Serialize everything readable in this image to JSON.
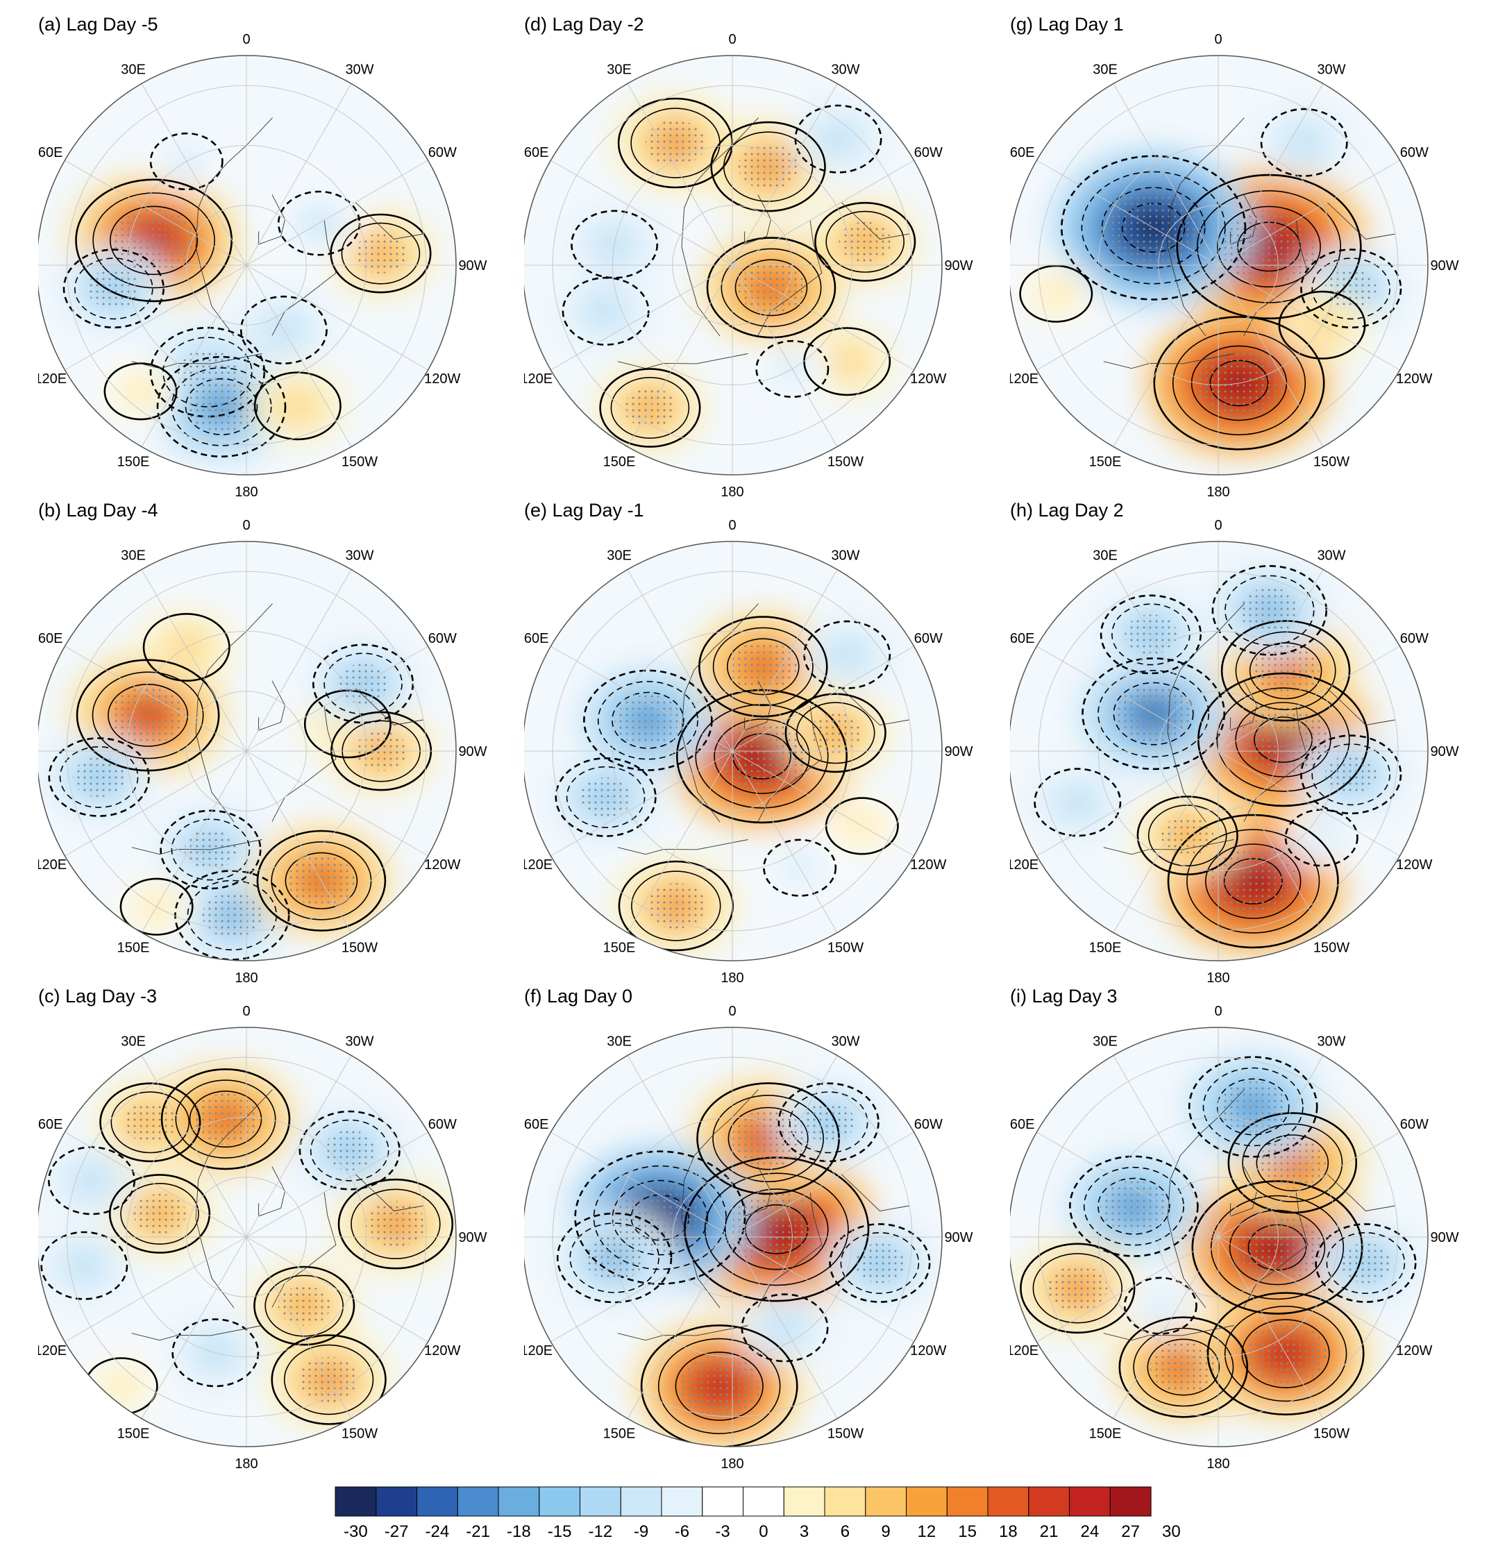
{
  "figure": {
    "type": "polar-stereographic-maps",
    "contour_style": "solid lines = positive, dashed lines = negative, stippling = significant"
  },
  "panels": [
    {
      "id": "a",
      "title": "(a) Lag Day -5",
      "lag": -5,
      "anomalies": [
        {
          "lon": 75,
          "lat": 58,
          "value": 24,
          "sign": "pos"
        },
        {
          "lon": -85,
          "lat": 45,
          "value": 12,
          "sign": "pos"
        },
        {
          "lon": -60,
          "lat": 62,
          "value": -8,
          "sign": "neg"
        },
        {
          "lon": 100,
          "lat": 45,
          "value": -12,
          "sign": "neg"
        },
        {
          "lon": 160,
          "lat": 52,
          "value": -15,
          "sign": "neg"
        },
        {
          "lon": 170,
          "lat": 42,
          "value": -18,
          "sign": "neg"
        },
        {
          "lon": -160,
          "lat": 40,
          "value": 9,
          "sign": "pos"
        },
        {
          "lon": 140,
          "lat": 35,
          "value": 6,
          "sign": "pos"
        },
        {
          "lon": 30,
          "lat": 50,
          "value": -6,
          "sign": "neg"
        },
        {
          "lon": -150,
          "lat": 65,
          "value": -9,
          "sign": "neg"
        }
      ]
    },
    {
      "id": "b",
      "title": "(b) Lag Day -4",
      "lag": -4,
      "anomalies": [
        {
          "lon": 70,
          "lat": 55,
          "value": 21,
          "sign": "pos"
        },
        {
          "lon": 30,
          "lat": 50,
          "value": 9,
          "sign": "pos"
        },
        {
          "lon": -75,
          "lat": 55,
          "value": 9,
          "sign": "pos"
        },
        {
          "lon": -90,
          "lat": 45,
          "value": 12,
          "sign": "pos"
        },
        {
          "lon": -60,
          "lat": 45,
          "value": -12,
          "sign": "neg"
        },
        {
          "lon": 100,
          "lat": 40,
          "value": -12,
          "sign": "neg"
        },
        {
          "lon": 160,
          "lat": 55,
          "value": -12,
          "sign": "neg"
        },
        {
          "lon": 175,
          "lat": 35,
          "value": -15,
          "sign": "neg"
        },
        {
          "lon": -150,
          "lat": 40,
          "value": 18,
          "sign": "pos"
        },
        {
          "lon": 150,
          "lat": 30,
          "value": 6,
          "sign": "pos"
        }
      ]
    },
    {
      "id": "c",
      "title": "(c) Lag Day -3",
      "lag": -3,
      "anomalies": [
        {
          "lon": 40,
          "lat": 40,
          "value": 12,
          "sign": "pos"
        },
        {
          "lon": 10,
          "lat": 50,
          "value": 18,
          "sign": "pos"
        },
        {
          "lon": 75,
          "lat": 60,
          "value": 12,
          "sign": "pos"
        },
        {
          "lon": -85,
          "lat": 40,
          "value": 15,
          "sign": "pos"
        },
        {
          "lon": -140,
          "lat": 60,
          "value": 12,
          "sign": "pos"
        },
        {
          "lon": -150,
          "lat": 35,
          "value": 15,
          "sign": "pos"
        },
        {
          "lon": -50,
          "lat": 45,
          "value": -12,
          "sign": "neg"
        },
        {
          "lon": 70,
          "lat": 35,
          "value": -9,
          "sign": "neg"
        },
        {
          "lon": 100,
          "lat": 35,
          "value": -9,
          "sign": "neg"
        },
        {
          "lon": 165,
          "lat": 50,
          "value": -9,
          "sign": "neg"
        },
        {
          "lon": 140,
          "lat": 25,
          "value": 6,
          "sign": "pos"
        }
      ]
    },
    {
      "id": "d",
      "title": "(d) Lag Day -2",
      "lag": -2,
      "anomalies": [
        {
          "lon": 25,
          "lat": 45,
          "value": 15,
          "sign": "pos"
        },
        {
          "lon": -20,
          "lat": 55,
          "value": 15,
          "sign": "pos"
        },
        {
          "lon": -120,
          "lat": 75,
          "value": 18,
          "sign": "pos"
        },
        {
          "lon": -80,
          "lat": 45,
          "value": 12,
          "sign": "pos"
        },
        {
          "lon": -40,
          "lat": 35,
          "value": -9,
          "sign": "neg"
        },
        {
          "lon": 80,
          "lat": 50,
          "value": -9,
          "sign": "neg"
        },
        {
          "lon": 110,
          "lat": 45,
          "value": -9,
          "sign": "neg"
        },
        {
          "lon": 150,
          "lat": 35,
          "value": 12,
          "sign": "pos"
        },
        {
          "lon": -130,
          "lat": 40,
          "value": 9,
          "sign": "pos"
        },
        {
          "lon": -150,
          "lat": 50,
          "value": -6,
          "sign": "neg"
        }
      ]
    },
    {
      "id": "e",
      "title": "(e) Lag Day -1",
      "lag": -1,
      "anomalies": [
        {
          "lon": -100,
          "lat": 80,
          "value": 27,
          "sign": "pos"
        },
        {
          "lon": -20,
          "lat": 60,
          "value": 18,
          "sign": "pos"
        },
        {
          "lon": -80,
          "lat": 55,
          "value": 12,
          "sign": "pos"
        },
        {
          "lon": 70,
          "lat": 60,
          "value": -18,
          "sign": "neg"
        },
        {
          "lon": 110,
          "lat": 45,
          "value": -12,
          "sign": "neg"
        },
        {
          "lon": -50,
          "lat": 40,
          "value": -9,
          "sign": "neg"
        },
        {
          "lon": 160,
          "lat": 35,
          "value": 15,
          "sign": "pos"
        },
        {
          "lon": -150,
          "lat": 45,
          "value": -6,
          "sign": "neg"
        },
        {
          "lon": -120,
          "lat": 40,
          "value": 6,
          "sign": "pos"
        }
      ]
    },
    {
      "id": "f",
      "title": "(f) Lag Day 0",
      "lag": 0,
      "anomalies": [
        {
          "lon": -80,
          "lat": 75,
          "value": 30,
          "sign": "pos"
        },
        {
          "lon": -20,
          "lat": 55,
          "value": 21,
          "sign": "pos"
        },
        {
          "lon": 75,
          "lat": 65,
          "value": -27,
          "sign": "neg"
        },
        {
          "lon": 100,
          "lat": 50,
          "value": -15,
          "sign": "neg"
        },
        {
          "lon": -40,
          "lat": 40,
          "value": -12,
          "sign": "neg"
        },
        {
          "lon": -100,
          "lat": 40,
          "value": -12,
          "sign": "neg"
        },
        {
          "lon": 175,
          "lat": 40,
          "value": 24,
          "sign": "pos"
        },
        {
          "lon": -150,
          "lat": 55,
          "value": -9,
          "sign": "neg"
        }
      ]
    },
    {
      "id": "g",
      "title": "(g) Lag Day 1",
      "lag": 1,
      "anomalies": [
        {
          "lon": -70,
          "lat": 72,
          "value": 30,
          "sign": "pos"
        },
        {
          "lon": 60,
          "lat": 65,
          "value": -30,
          "sign": "neg"
        },
        {
          "lon": -170,
          "lat": 50,
          "value": 27,
          "sign": "pos"
        },
        {
          "lon": -100,
          "lat": 45,
          "value": -12,
          "sign": "neg"
        },
        {
          "lon": -35,
          "lat": 40,
          "value": -9,
          "sign": "neg"
        },
        {
          "lon": 100,
          "lat": 35,
          "value": 6,
          "sign": "pos"
        },
        {
          "lon": -120,
          "lat": 50,
          "value": 9,
          "sign": "pos"
        }
      ]
    },
    {
      "id": "h",
      "title": "(h) Lag Day 2",
      "lag": 2,
      "anomalies": [
        {
          "lon": -80,
          "lat": 68,
          "value": 27,
          "sign": "pos"
        },
        {
          "lon": -40,
          "lat": 55,
          "value": 18,
          "sign": "pos"
        },
        {
          "lon": 60,
          "lat": 65,
          "value": -21,
          "sign": "neg"
        },
        {
          "lon": 30,
          "lat": 45,
          "value": -12,
          "sign": "neg"
        },
        {
          "lon": -20,
          "lat": 40,
          "value": -15,
          "sign": "neg"
        },
        {
          "lon": -100,
          "lat": 45,
          "value": -12,
          "sign": "neg"
        },
        {
          "lon": -165,
          "lat": 45,
          "value": 27,
          "sign": "pos"
        },
        {
          "lon": 110,
          "lat": 40,
          "value": -9,
          "sign": "neg"
        },
        {
          "lon": 160,
          "lat": 60,
          "value": 12,
          "sign": "pos"
        },
        {
          "lon": -130,
          "lat": 45,
          "value": -6,
          "sign": "neg"
        }
      ]
    },
    {
      "id": "i",
      "title": "(i) Lag Day 3",
      "lag": 3,
      "anomalies": [
        {
          "lon": -100,
          "lat": 70,
          "value": 27,
          "sign": "pos"
        },
        {
          "lon": -45,
          "lat": 55,
          "value": 18,
          "sign": "pos"
        },
        {
          "lon": -15,
          "lat": 45,
          "value": -18,
          "sign": "neg"
        },
        {
          "lon": 70,
          "lat": 60,
          "value": -18,
          "sign": "neg"
        },
        {
          "lon": -100,
          "lat": 40,
          "value": -12,
          "sign": "neg"
        },
        {
          "lon": 110,
          "lat": 40,
          "value": 15,
          "sign": "pos"
        },
        {
          "lon": 165,
          "lat": 45,
          "value": 18,
          "sign": "pos"
        },
        {
          "lon": -150,
          "lat": 45,
          "value": 24,
          "sign": "pos"
        },
        {
          "lon": 140,
          "lat": 60,
          "value": -6,
          "sign": "neg"
        }
      ]
    }
  ],
  "longitude_labels": [
    {
      "lon": 0,
      "label": "0"
    },
    {
      "lon": -30,
      "label": "30W"
    },
    {
      "lon": -60,
      "label": "60W"
    },
    {
      "lon": -90,
      "label": "90W"
    },
    {
      "lon": -120,
      "label": "120W"
    },
    {
      "lon": -150,
      "label": "150W"
    },
    {
      "lon": 180,
      "label": "180"
    },
    {
      "lon": 150,
      "label": "150E"
    },
    {
      "lon": 120,
      "label": "120E"
    },
    {
      "lon": 90,
      "label": "90E"
    },
    {
      "lon": 60,
      "label": "60E"
    },
    {
      "lon": 30,
      "label": "30E"
    }
  ],
  "colorbar": {
    "levels": [
      -30,
      -27,
      -24,
      -21,
      -18,
      -15,
      -12,
      -9,
      -6,
      -3,
      0,
      3,
      6,
      9,
      12,
      15,
      18,
      21,
      24,
      27,
      30
    ],
    "labels": [
      "-30",
      "-27",
      "-24",
      "-21",
      "-18",
      "-15",
      "-12",
      "-9",
      "-6",
      "-3",
      "0",
      "3",
      "6",
      "9",
      "12",
      "15",
      "18",
      "21",
      "24",
      "27",
      "30"
    ],
    "colors": [
      "#1b2a5c",
      "#1f3f8e",
      "#2f63b4",
      "#4a8ccd",
      "#6aaee0",
      "#8cc8ee",
      "#aed9f5",
      "#cde8f8",
      "#e4f2fb",
      "#ffffff",
      "#ffffff",
      "#fdf3c6",
      "#fde39b",
      "#fbc566",
      "#f7a23b",
      "#f1802a",
      "#e35a22",
      "#d23b1f",
      "#c22321",
      "#a3161c"
    ]
  }
}
